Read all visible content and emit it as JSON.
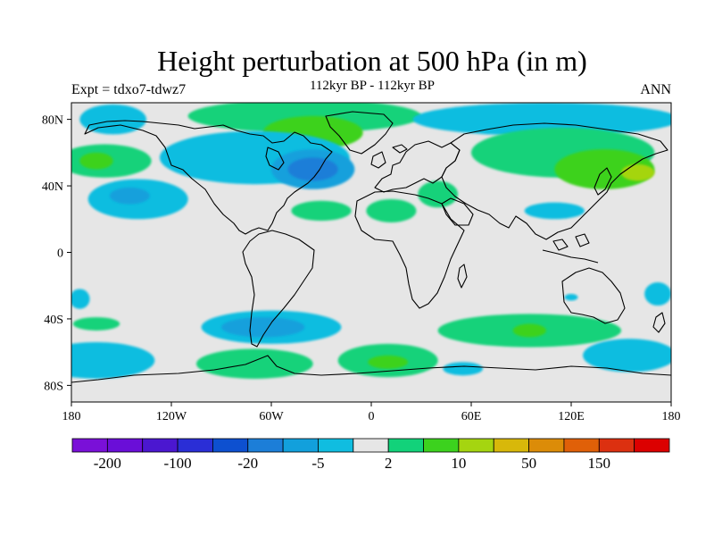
{
  "title": "Height perturbation at 500 hPa (in m)",
  "subtitle_left": "Expt = tdxo7-tdwz7",
  "subtitle_center": "112kyr BP - 112kyr BP",
  "subtitle_right": "ANN",
  "map": {
    "lon_range": [
      -180,
      180
    ],
    "lat_range": [
      -90,
      90
    ],
    "projection": "cylindrical-equidistant",
    "lat_ticks": [
      {
        "value": 80,
        "label": "80N"
      },
      {
        "value": 40,
        "label": "40N"
      },
      {
        "value": 0,
        "label": "0"
      },
      {
        "value": -40,
        "label": "40S"
      },
      {
        "value": -80,
        "label": "80S"
      }
    ],
    "lon_ticks": [
      {
        "value": -180,
        "label": "180"
      },
      {
        "value": -120,
        "label": "120W"
      },
      {
        "value": -60,
        "label": "60W"
      },
      {
        "value": 0,
        "label": "0"
      },
      {
        "value": 60,
        "label": "60E"
      },
      {
        "value": 120,
        "label": "120E"
      },
      {
        "value": 180,
        "label": "180"
      }
    ]
  },
  "colorbar": {
    "colors": [
      "#7a10d8",
      "#6a0ed8",
      "#4b17d0",
      "#2a2ed6",
      "#0d50d0",
      "#1c7ed8",
      "#12a0dc",
      "#10bde0",
      "#e6e6e6",
      "#12d27a",
      "#3cd21e",
      "#a5d510",
      "#d8b80a",
      "#dc8c08",
      "#e06008",
      "#dc3010",
      "#dc0000"
    ],
    "labels": [
      {
        "index": 1,
        "text": "-200"
      },
      {
        "index": 3,
        "text": "-100"
      },
      {
        "index": 5,
        "text": "-20"
      },
      {
        "index": 7,
        "text": "-5"
      },
      {
        "index": 9,
        "text": "2"
      },
      {
        "index": 11,
        "text": "10"
      },
      {
        "index": 13,
        "text": "50"
      },
      {
        "index": 15,
        "text": "150"
      }
    ]
  },
  "chart_data": {
    "type": "heatmap",
    "title": "Height perturbation at 500 hPa (in m)",
    "background_color": "#e6e6e6",
    "levels": [
      -200,
      -150,
      -100,
      -50,
      -20,
      -10,
      -5,
      -2,
      2,
      5,
      10,
      20,
      50,
      100,
      150,
      200
    ],
    "regions": [
      {
        "lon": -155,
        "lat": 80,
        "rlon": 20,
        "rlat": 9,
        "color": "#10bde0"
      },
      {
        "lon": -160,
        "lat": 55,
        "rlon": 28,
        "rlat": 10,
        "color": "#12d27a"
      },
      {
        "lon": -165,
        "lat": 55,
        "rlon": 10,
        "rlat": 5,
        "color": "#3cd21e"
      },
      {
        "lon": -40,
        "lat": 82,
        "rlon": 70,
        "rlat": 10,
        "color": "#12d27a"
      },
      {
        "lon": -35,
        "lat": 72,
        "rlon": 30,
        "rlat": 10,
        "color": "#3cd21e"
      },
      {
        "lon": -70,
        "lat": 57,
        "rlon": 57,
        "rlat": 16,
        "color": "#10bde0"
      },
      {
        "lon": -35,
        "lat": 50,
        "rlon": 25,
        "rlat": 12,
        "color": "#12a0dc"
      },
      {
        "lon": -35,
        "lat": 50,
        "rlon": 15,
        "rlat": 7,
        "color": "#1c7ed8"
      },
      {
        "lon": -140,
        "lat": 32,
        "rlon": 30,
        "rlat": 12,
        "color": "#10bde0"
      },
      {
        "lon": -145,
        "lat": 34,
        "rlon": 12,
        "rlat": 5,
        "color": "#12a0dc"
      },
      {
        "lon": -30,
        "lat": 25,
        "rlon": 18,
        "rlat": 6,
        "color": "#12d27a"
      },
      {
        "lon": 12,
        "lat": 25,
        "rlon": 15,
        "rlat": 7,
        "color": "#12d27a"
      },
      {
        "lon": 40,
        "lat": 35,
        "rlon": 12,
        "rlat": 8,
        "color": "#12d27a"
      },
      {
        "lon": 105,
        "lat": 80,
        "rlon": 80,
        "rlat": 10,
        "color": "#10bde0"
      },
      {
        "lon": 115,
        "lat": 60,
        "rlon": 55,
        "rlat": 15,
        "color": "#12d27a"
      },
      {
        "lon": 140,
        "lat": 50,
        "rlon": 30,
        "rlat": 12,
        "color": "#3cd21e"
      },
      {
        "lon": 160,
        "lat": 48,
        "rlon": 10,
        "rlat": 5,
        "color": "#a5d510"
      },
      {
        "lon": 110,
        "lat": 25,
        "rlon": 18,
        "rlat": 5,
        "color": "#10bde0"
      },
      {
        "lon": 120,
        "lat": -27,
        "rlon": 4,
        "rlat": 2,
        "color": "#10bde0"
      },
      {
        "lon": -175,
        "lat": -28,
        "rlon": 6,
        "rlat": 6,
        "color": "#10bde0"
      },
      {
        "lon": -165,
        "lat": -43,
        "rlon": 14,
        "rlat": 4,
        "color": "#12d27a"
      },
      {
        "lon": -165,
        "lat": -65,
        "rlon": 35,
        "rlat": 11,
        "color": "#10bde0"
      },
      {
        "lon": -60,
        "lat": -45,
        "rlon": 42,
        "rlat": 10,
        "color": "#10bde0"
      },
      {
        "lon": -65,
        "lat": -45,
        "rlon": 25,
        "rlat": 6,
        "color": "#12a0dc"
      },
      {
        "lon": -70,
        "lat": -67,
        "rlon": 35,
        "rlat": 9,
        "color": "#12d27a"
      },
      {
        "lon": 10,
        "lat": -65,
        "rlon": 30,
        "rlat": 10,
        "color": "#12d27a"
      },
      {
        "lon": 10,
        "lat": -66,
        "rlon": 12,
        "rlat": 4,
        "color": "#3cd21e"
      },
      {
        "lon": 95,
        "lat": -47,
        "rlon": 55,
        "rlat": 10,
        "color": "#12d27a"
      },
      {
        "lon": 95,
        "lat": -47,
        "rlon": 10,
        "rlat": 4,
        "color": "#3cd21e"
      },
      {
        "lon": 55,
        "lat": -70,
        "rlon": 12,
        "rlat": 4,
        "color": "#10bde0"
      },
      {
        "lon": 155,
        "lat": -62,
        "rlon": 28,
        "rlat": 10,
        "color": "#10bde0"
      },
      {
        "lon": 172,
        "lat": -25,
        "rlon": 8,
        "rlat": 7,
        "color": "#10bde0"
      }
    ]
  }
}
